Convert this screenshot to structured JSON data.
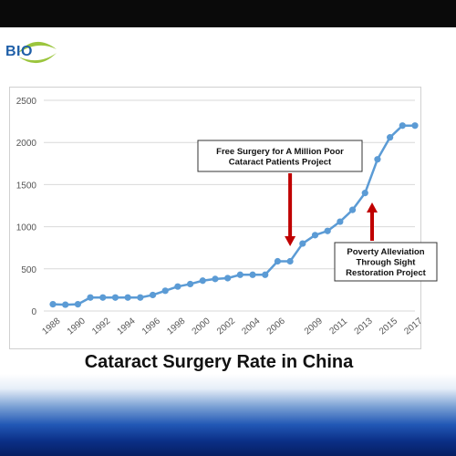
{
  "logo": {
    "text": "BIO",
    "icon": "eye-logo-icon"
  },
  "caption": "Cataract Surgery Rate in China",
  "colors": {
    "line": "#5b9bd5",
    "arrow": "#c00000",
    "grid": "#d9d9d9"
  },
  "chart_data": {
    "type": "line",
    "title": "",
    "xlabel": "",
    "ylabel": "",
    "ylim": [
      0,
      2500
    ],
    "yticks": [
      0,
      500,
      1000,
      1500,
      2000,
      2500
    ],
    "x": [
      1988,
      1989,
      1990,
      1991,
      1992,
      1993,
      1994,
      1995,
      1996,
      1997,
      1998,
      1999,
      2000,
      2001,
      2002,
      2003,
      2004,
      2005,
      2006,
      2007,
      2008,
      2009,
      2010,
      2011,
      2012,
      2013,
      2014,
      2015,
      2016,
      2017
    ],
    "x_tick_labels": [
      "1988",
      "1990",
      "1992",
      "1994",
      "1996",
      "1998",
      "2000",
      "2002",
      "2004",
      "2006",
      "2009",
      "2011",
      "2013",
      "2015",
      "2017"
    ],
    "series": [
      {
        "values": [
          80,
          75,
          80,
          160,
          160,
          160,
          160,
          160,
          190,
          240,
          290,
          320,
          360,
          380,
          390,
          430,
          430,
          430,
          590,
          590,
          800,
          900,
          950,
          1060,
          1200,
          1400,
          1800,
          2060,
          2200,
          2200
        ]
      }
    ],
    "grid": true,
    "annotations": [
      {
        "text": "Free Surgery for A Million Poor\nCataract Patients Project",
        "x": 2007,
        "y": 590,
        "arrow": "down"
      },
      {
        "text": "Poverty Alleviation\nThrough Sight\nRestoration Project",
        "x": 2013,
        "y": 1400,
        "arrow": "up"
      }
    ]
  }
}
